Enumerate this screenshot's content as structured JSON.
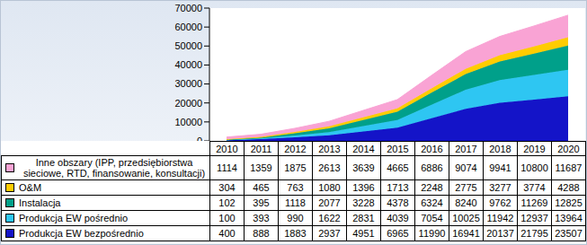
{
  "chart_data": {
    "type": "area",
    "stacked": true,
    "grid": false,
    "categories": [
      "2010",
      "2011",
      "2012",
      "2013",
      "2014",
      "2015",
      "2016",
      "2017",
      "2018",
      "2019",
      "2020"
    ],
    "ylim": [
      0,
      70000
    ],
    "yticks": [
      0,
      10000,
      20000,
      30000,
      40000,
      50000,
      60000,
      70000
    ],
    "series": [
      {
        "name": "Produkcja EW bezpośrednio",
        "color": "#1414c8",
        "values": [
          400,
          888,
          1883,
          2937,
          4951,
          6965,
          11990,
          16941,
          20137,
          21795,
          23507
        ]
      },
      {
        "name": "Produkcja EW pośrednio",
        "color": "#2ec6f2",
        "values": [
          100,
          393,
          990,
          1622,
          2831,
          4039,
          7054,
          10025,
          11942,
          12937,
          13964
        ]
      },
      {
        "name": "Instalacja",
        "color": "#00a08a",
        "values": [
          102,
          395,
          1118,
          2077,
          3228,
          4378,
          6324,
          8240,
          9762,
          11269,
          12825
        ]
      },
      {
        "name": "O&M",
        "color": "#ffcc00",
        "values": [
          304,
          465,
          763,
          1080,
          1396,
          1713,
          2248,
          2775,
          3277,
          3774,
          4288
        ]
      },
      {
        "name": "Inne obszary (IPP, przedsiębiorstwa sieciowe, RTD, finansowanie, konsultacji)",
        "color": "#f9a3d4",
        "values": [
          1114,
          1359,
          1875,
          2613,
          3639,
          4665,
          6886,
          9074,
          9941,
          10800,
          11687
        ]
      }
    ]
  }
}
